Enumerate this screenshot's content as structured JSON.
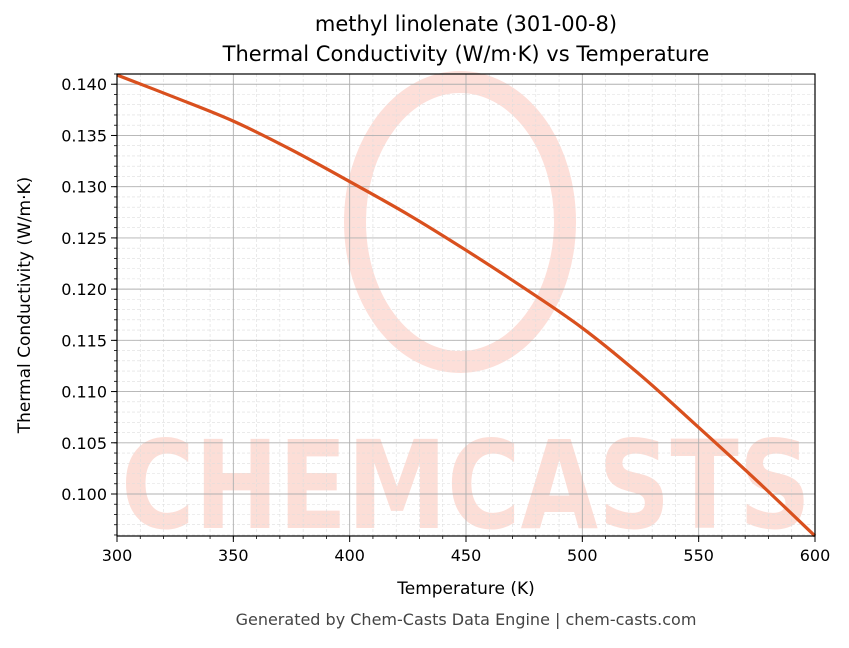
{
  "chart_data": {
    "type": "line",
    "title": "methyl linolenate (301-00-8)",
    "subtitle": "Thermal Conductivity (W/m·K) vs Temperature",
    "xlabel": "Temperature (K)",
    "ylabel": "Thermal Conductivity (W/m·K)",
    "xlim": [
      300,
      600
    ],
    "ylim": [
      0.0959,
      0.141
    ],
    "xticks": [
      "300",
      "350",
      "400",
      "450",
      "500",
      "550",
      "600"
    ],
    "yticks": [
      "0.100",
      "0.105",
      "0.110",
      "0.115",
      "0.120",
      "0.125",
      "0.130",
      "0.135",
      "0.140"
    ],
    "grid": true,
    "minor_grid": true,
    "series": [
      {
        "color": "#d9501e",
        "x": [
          300,
          325,
          350,
          375,
          400,
          425,
          450,
          475,
          500,
          525,
          550,
          575,
          600
        ],
        "y": [
          0.1409,
          0.1387,
          0.1364,
          0.1336,
          0.1305,
          0.1273,
          0.1238,
          0.1201,
          0.1162,
          0.1116,
          0.1065,
          0.1013,
          0.0959
        ]
      }
    ],
    "watermark": "CHEMCASTS",
    "footer": "Generated by Chem-Casts Data Engine | chem-casts.com"
  }
}
